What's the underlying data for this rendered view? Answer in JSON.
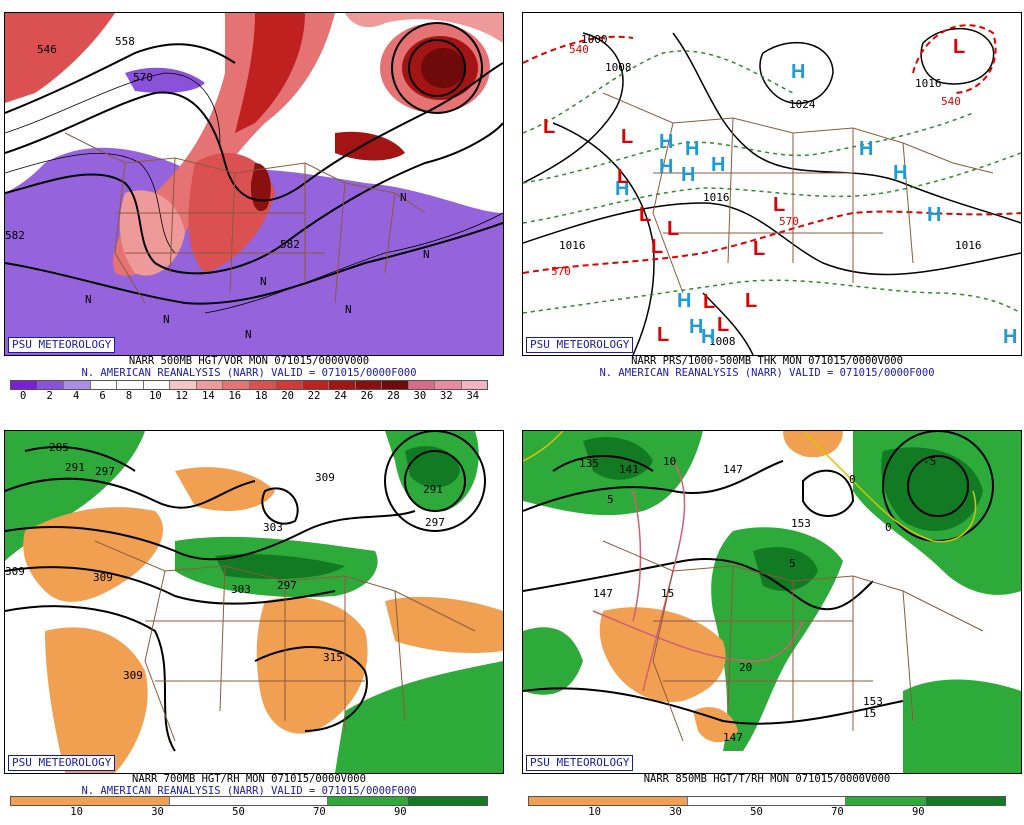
{
  "brand": "PSU METEOROLOGY",
  "panels": {
    "p500": {
      "title": "NARR 500MB HGT/VOR MON 071015/0000V000",
      "valid": "N. AMERICAN REANALYSIS (NARR) VALID = 071015/0000F000",
      "scale_labels": [
        "0",
        "2",
        "4",
        "6",
        "8",
        "10",
        "12",
        "14",
        "16",
        "18",
        "20",
        "22",
        "24",
        "26",
        "28",
        "30",
        "32",
        "34"
      ],
      "scale_colors": [
        "#7b1fd6",
        "#8a52d8",
        "#a98ee3",
        "#ffffff",
        "#ffffff",
        "#ffffff",
        "#f6c6c6",
        "#ef9a9a",
        "#e57373",
        "#db5050",
        "#d03a3a",
        "#bf2020",
        "#a31515",
        "#8a0f0f",
        "#6e0a0a",
        "#d86a8c",
        "#e88aa4",
        "#f2b3c3"
      ],
      "contour_labels": [
        "546",
        "558",
        "570",
        "582",
        "582",
        "N",
        "N",
        "N",
        "N",
        "N",
        "N",
        "N"
      ]
    },
    "psfc": {
      "title": "NARR PRS/1000-500MB THK MON 071015/0000V000",
      "valid": "N. AMERICAN REANALYSIS (NARR) VALID = 071015/0000F000",
      "contour_labels": [
        "1000",
        "1008",
        "1024",
        "1016",
        "1016",
        "1016",
        "1008",
        "1016",
        "540",
        "570",
        "570",
        "540"
      ],
      "highs": [
        "H",
        "H",
        "H",
        "H",
        "H",
        "H",
        "H",
        "H",
        "H",
        "H",
        "H",
        "H",
        "H",
        "H"
      ],
      "lows": [
        "L",
        "L",
        "L",
        "L",
        "L",
        "L",
        "L",
        "L",
        "L",
        "L",
        "L",
        "L",
        "L"
      ]
    },
    "p700": {
      "title": "NARR 700MB HGT/RH MON 071015/0000V000",
      "valid": "N. AMERICAN REANALYSIS (NARR) VALID = 071015/0000F000",
      "scale_labels": [
        "10",
        "30",
        "50",
        "70",
        "90"
      ],
      "contour_labels": [
        "285",
        "291",
        "297",
        "303",
        "309",
        "309",
        "309",
        "303",
        "297",
        "291",
        "315",
        "309",
        "297"
      ]
    },
    "p850": {
      "title": "NARR 850MB HGT/T/RH MON 071015/0000V000",
      "scale_labels": [
        "10",
        "30",
        "50",
        "70",
        "90"
      ],
      "contour_labels": [
        "135",
        "141",
        "147",
        "153",
        "147",
        "147",
        "153",
        "-5",
        "5",
        "5",
        "10",
        "15",
        "15",
        "20",
        "0",
        "0"
      ]
    }
  },
  "colors": {
    "red_scale": "#d03a3a",
    "purple_scale": "#8a52d8",
    "rh_dry": "#f0a050",
    "rh_moist": "#2eaa3a",
    "rh_very_moist": "#117a22",
    "high_symbol": "#1e9ad6",
    "low_symbol": "#e00000",
    "thickness": "#e00000",
    "isotherm": "#2e8b2e",
    "borders": "#8b5a3c"
  }
}
